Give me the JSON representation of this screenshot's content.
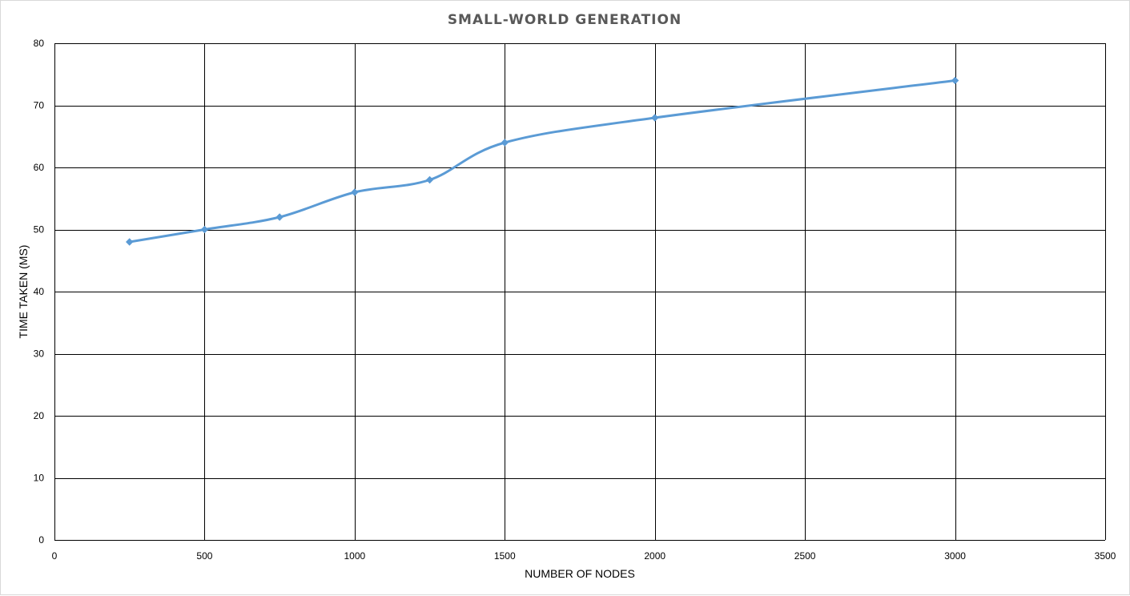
{
  "chart_data": {
    "type": "scatter",
    "title": "SMALL-WORLD GENERATION",
    "xlabel": "NUMBER OF NODES",
    "ylabel": "TIME TAKEN (MS)",
    "xlim": [
      0,
      3500
    ],
    "ylim": [
      0,
      80
    ],
    "x_ticks": [
      0,
      500,
      1000,
      1500,
      2000,
      2500,
      3000,
      3500
    ],
    "y_ticks": [
      0,
      10,
      20,
      30,
      40,
      50,
      60,
      70,
      80
    ],
    "grid": true,
    "line_style": "smoothed-with-diamond-markers",
    "series_color": "#5b9bd5",
    "series": [
      {
        "x": [
          250,
          500,
          750,
          1000,
          1250,
          1500,
          2000,
          3000
        ],
        "y": [
          48,
          50,
          52,
          56,
          58,
          64,
          68,
          74
        ]
      }
    ]
  }
}
